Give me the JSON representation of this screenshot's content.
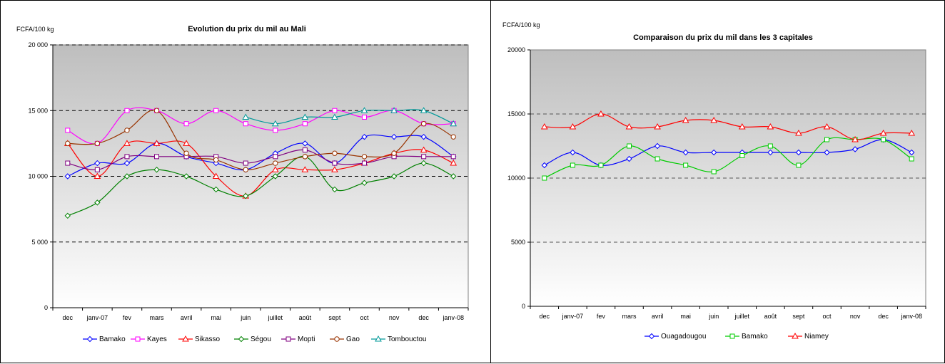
{
  "chart_data": [
    {
      "type": "line",
      "title": "Evolution du prix du mil au Mali",
      "unit_label": "FCFA/100 kg",
      "categories": [
        "dec",
        "janv-07",
        "fev",
        "mars",
        "avril",
        "mai",
        "juin",
        "juillet",
        "août",
        "sept",
        "oct",
        "nov",
        "dec",
        "janv-08"
      ],
      "ylim": [
        0,
        20000
      ],
      "yticks": [
        "0",
        "5 000",
        "10 000",
        "15 000",
        "20 000"
      ],
      "grid": "dashed at 5 000, 10 000, 15 000, 20 000",
      "legend_position": "bottom",
      "series": [
        {
          "name": "Bamako",
          "color": "#0000ff",
          "marker": "diamond",
          "values": [
            10000,
            11000,
            11000,
            12500,
            11500,
            11000,
            10500,
            11750,
            12500,
            11000,
            13000,
            13000,
            13000,
            11500
          ]
        },
        {
          "name": "Kayes",
          "color": "#ff00ff",
          "marker": "square",
          "values": [
            13500,
            12500,
            15000,
            15000,
            14000,
            15000,
            14000,
            13500,
            14000,
            15000,
            14500,
            15000,
            14000,
            14000
          ]
        },
        {
          "name": "Sikasso",
          "color": "#ff0000",
          "marker": "triangle",
          "values": [
            12500,
            10000,
            12500,
            12500,
            12500,
            10000,
            8500,
            10500,
            10500,
            10500,
            11000,
            11750,
            12000,
            11000
          ]
        },
        {
          "name": "Ségou",
          "color": "#008000",
          "marker": "diamond",
          "values": [
            7000,
            8000,
            10000,
            10500,
            10000,
            9000,
            8500,
            10000,
            11500,
            9000,
            9500,
            10000,
            11000,
            10000
          ]
        },
        {
          "name": "Mopti",
          "color": "#800080",
          "marker": "square",
          "values": [
            11000,
            10500,
            11500,
            11500,
            11500,
            11500,
            11000,
            11500,
            12000,
            11000,
            11000,
            11500,
            11500,
            11500
          ]
        },
        {
          "name": "Gao",
          "color": "#993300",
          "marker": "circle",
          "values": [
            12500,
            12500,
            13500,
            15000,
            11750,
            11250,
            10500,
            11000,
            11500,
            11750,
            11500,
            11750,
            14000,
            13000
          ]
        },
        {
          "name": "Tombouctou",
          "color": "#009999",
          "marker": "triangle",
          "values": [
            null,
            null,
            null,
            null,
            null,
            null,
            14500,
            14000,
            14500,
            14500,
            15000,
            15000,
            15000,
            14000
          ]
        }
      ]
    },
    {
      "type": "line",
      "title": "Comparaison du prix du mil dans les 3 capitales",
      "unit_label": "FCFA/100 kg",
      "categories": [
        "dec",
        "janv-07",
        "fev",
        "mars",
        "avril",
        "mai",
        "juin",
        "juillet",
        "août",
        "sept",
        "oct",
        "nov",
        "dec",
        "janv-08"
      ],
      "ylim": [
        0,
        20000
      ],
      "yticks": [
        "0",
        "5000",
        "10000",
        "15000",
        "20000"
      ],
      "grid": "dashed at 5000, 10000, 15000",
      "legend_position": "bottom",
      "series": [
        {
          "name": "Ouagadougou",
          "color": "#0000ff",
          "marker": "diamond",
          "values": [
            11000,
            12000,
            11000,
            11500,
            12500,
            12000,
            12000,
            12000,
            12000,
            12000,
            12000,
            12250,
            13000,
            12000
          ]
        },
        {
          "name": "Bamako",
          "color": "#00cc00",
          "marker": "square",
          "values": [
            10000,
            11000,
            11000,
            12500,
            11500,
            11000,
            10500,
            11750,
            12500,
            11000,
            13000,
            13000,
            13000,
            11500
          ]
        },
        {
          "name": "Niamey",
          "color": "#ff0000",
          "marker": "triangle",
          "values": [
            14000,
            14000,
            15000,
            14000,
            14000,
            14500,
            14500,
            14000,
            14000,
            13500,
            14000,
            13000,
            13500,
            13500
          ]
        }
      ]
    }
  ]
}
